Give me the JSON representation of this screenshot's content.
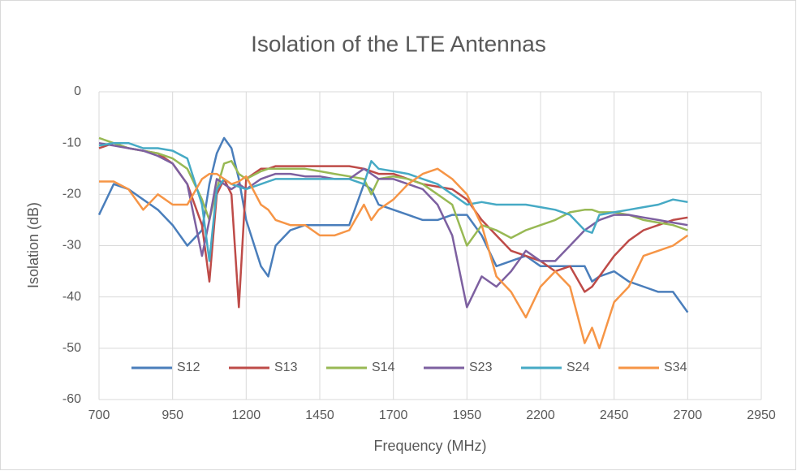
{
  "chart_data": {
    "type": "line",
    "title": "Isolation of the LTE Antennas",
    "x_label": "Frequency (MHz)",
    "y_label": "Isolation (dB)",
    "x": [
      700,
      750,
      800,
      850,
      900,
      950,
      1000,
      1050,
      1075,
      1100,
      1125,
      1150,
      1175,
      1200,
      1250,
      1275,
      1300,
      1350,
      1400,
      1450,
      1500,
      1550,
      1600,
      1625,
      1650,
      1700,
      1750,
      1800,
      1850,
      1900,
      1950,
      2000,
      2050,
      2100,
      2150,
      2200,
      2250,
      2300,
      2350,
      2375,
      2400,
      2450,
      2500,
      2550,
      2600,
      2650,
      2700
    ],
    "series": [
      {
        "name": "S12",
        "color": "#4a7ebb",
        "values": [
          -24,
          -18,
          -19,
          -21,
          -23,
          -26,
          -30,
          -27,
          -18,
          -12,
          -9,
          -11,
          -17,
          -25,
          -34,
          -36,
          -30,
          -27,
          -26,
          -26,
          -26,
          -26,
          -18,
          -19,
          -22,
          -23,
          -24,
          -25,
          -25,
          -24,
          -24,
          -28,
          -34,
          -33,
          -32,
          -34,
          -34,
          -34,
          -34,
          -37,
          -36,
          -35,
          -37,
          -38,
          -39,
          -39,
          -43
        ]
      },
      {
        "name": "S13",
        "color": "#be4b48",
        "values": [
          -11,
          -10,
          -11,
          -11.5,
          -12,
          -14,
          -18,
          -26,
          -37,
          -20,
          -17,
          -20,
          -42,
          -17,
          -15,
          -15,
          -14.5,
          -14.5,
          -14.5,
          -14.5,
          -14.5,
          -14.5,
          -15,
          -15.5,
          -16,
          -16,
          -17,
          -18,
          -18.5,
          -19,
          -21,
          -25,
          -28,
          -31,
          -32,
          -33,
          -35,
          -34,
          -39,
          -38,
          -36,
          -32,
          -29,
          -27,
          -26,
          -25,
          -24.5
        ]
      },
      {
        "name": "S14",
        "color": "#98b954",
        "values": [
          -9,
          -10,
          -11,
          -11.5,
          -12,
          -13,
          -15,
          -21,
          -25,
          -19,
          -14,
          -13.5,
          -16,
          -17,
          -15.5,
          -15,
          -15,
          -15,
          -15,
          -15.5,
          -16,
          -16.5,
          -17,
          -20,
          -17,
          -16.5,
          -17,
          -18,
          -20,
          -22,
          -30,
          -26,
          -27,
          -28.5,
          -27,
          -26,
          -25,
          -23.5,
          -23,
          -23,
          -23.5,
          -23.5,
          -24,
          -25,
          -25.5,
          -26,
          -27
        ]
      },
      {
        "name": "S23",
        "color": "#7d60a0",
        "values": [
          -10,
          -10.5,
          -11,
          -11.5,
          -12.5,
          -14,
          -18,
          -32,
          -25,
          -17,
          -18,
          -19,
          -18,
          -19,
          -17,
          -16.5,
          -16,
          -16,
          -16.5,
          -16.5,
          -17,
          -17,
          -15,
          -16,
          -17,
          -17,
          -18,
          -19,
          -22,
          -28,
          -42,
          -36,
          -38,
          -35,
          -31,
          -33,
          -33,
          -30,
          -27,
          -26,
          -25,
          -24,
          -24,
          -24.5,
          -25,
          -25.5,
          -26
        ]
      },
      {
        "name": "S24",
        "color": "#46aac5",
        "values": [
          -10.5,
          -10,
          -10,
          -11,
          -11,
          -11.5,
          -13,
          -22,
          -33,
          -19,
          -17,
          -18,
          -18.5,
          -19,
          -18,
          -17.5,
          -17,
          -17,
          -17,
          -17,
          -17,
          -17,
          -18,
          -13.5,
          -15,
          -15.5,
          -16,
          -17,
          -18,
          -20,
          -22,
          -21.5,
          -22,
          -22,
          -22,
          -22.5,
          -23,
          -24,
          -27,
          -27.5,
          -24,
          -23.5,
          -23,
          -22.5,
          -22,
          -21,
          -21.5
        ]
      },
      {
        "name": "S34",
        "color": "#f69546",
        "values": [
          -17.5,
          -17.5,
          -19,
          -23,
          -20,
          -22,
          -22,
          -17,
          -16,
          -16,
          -17,
          -18,
          -17.5,
          -16.5,
          -22,
          -23,
          -25,
          -26,
          -26,
          -28,
          -28,
          -27,
          -22,
          -25,
          -23,
          -21,
          -18,
          -16,
          -15,
          -17,
          -20,
          -26,
          -36,
          -39,
          -44,
          -38,
          -35,
          -38,
          -49,
          -46,
          -50,
          -41,
          -38,
          -32,
          -31,
          -30,
          -28
        ]
      }
    ],
    "xlim": [
      700,
      2950
    ],
    "xticks": [
      700,
      950,
      1200,
      1450,
      1700,
      1950,
      2200,
      2450,
      2700,
      2950
    ],
    "ylim": [
      -60,
      0
    ],
    "yticks": [
      -60,
      -50,
      -40,
      -30,
      -20,
      -10,
      0
    ],
    "grid": true,
    "legend": "bottom"
  }
}
